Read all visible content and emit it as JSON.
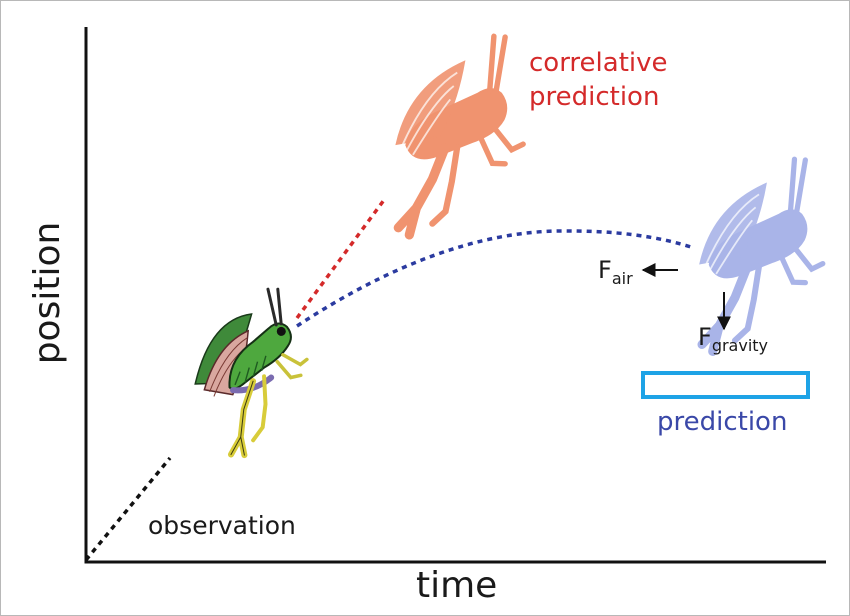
{
  "axes": {
    "x_label": "time",
    "y_label": "position"
  },
  "labels": {
    "observation": "observation",
    "correlative_prediction_line1": "correlative",
    "correlative_prediction_line2": "prediction",
    "prediction": "prediction"
  },
  "forces": {
    "air": {
      "symbol": "F",
      "subscript": "air"
    },
    "gravity": {
      "symbol": "F",
      "subscript": "gravity"
    }
  },
  "icons": {
    "observed": "grasshopper-icon",
    "correlative": "grasshopper-silhouette-icon",
    "physics": "grasshopper-silhouette-icon"
  },
  "colors": {
    "observation_trace": "#111111",
    "correlative": "#d42a2a",
    "correlative_grasshopper": "#f0936f",
    "physics_trajectory": "#2b3ba0",
    "physics_grasshopper": "#a9b4e8",
    "prediction_text": "#3a48a8",
    "prediction_box": "#1ea3e6"
  }
}
